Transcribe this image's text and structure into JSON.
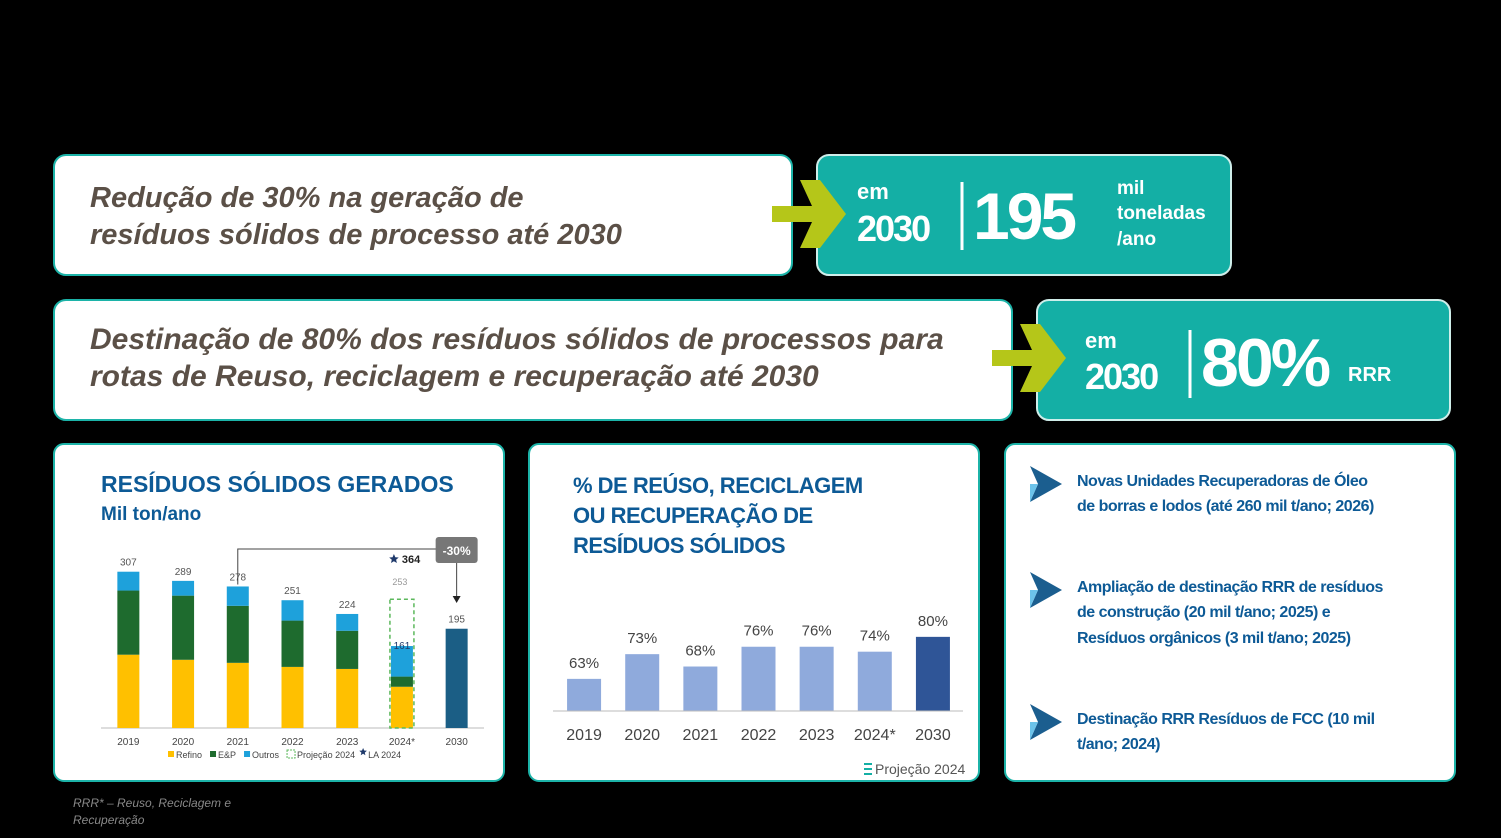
{
  "banners": [
    {
      "text_lines": [
        "Redução de 30% na geração de",
        "resíduos sólidos de processo até 2030"
      ],
      "prefix": [
        "em",
        "2030"
      ],
      "big": "195",
      "unit_lines": [
        "mil",
        "toneladas",
        "/ano"
      ]
    },
    {
      "text_lines": [
        "Destinação  de 80% dos resíduos sólidos de processos para",
        "rotas de Reuso, reciclagem e recuperação  até 2030"
      ],
      "prefix": [
        "em",
        "2030"
      ],
      "big": "80%",
      "unit_lines": [
        "RRR"
      ]
    }
  ],
  "chart_data": [
    {
      "type": "stacked_bar",
      "title": "RESÍDUOS SÓLIDOS GERADOS",
      "subtitle": "Mil ton/ano",
      "categories": [
        "2019",
        "2020",
        "2021",
        "2022",
        "2023",
        "2024*",
        "2030"
      ],
      "series": [
        {
          "name": "Refino",
          "color": "#ffc000",
          "values": [
            144,
            134,
            128,
            120,
            116,
            81,
            null
          ]
        },
        {
          "name": "E&P",
          "color": "#1e6b2e",
          "values": [
            126,
            126,
            112,
            91,
            75,
            20,
            null
          ]
        },
        {
          "name": "Outros",
          "color": "#1ea1db",
          "values": [
            37,
            29,
            38,
            40,
            33,
            60,
            null
          ]
        },
        {
          "color": "#1b5e85",
          "values": [
            null,
            null,
            null,
            null,
            null,
            null,
            195
          ]
        }
      ],
      "totals": [
        307,
        289,
        278,
        251,
        224,
        161,
        195
      ],
      "projection": {
        "label": "Projeção 2024",
        "value": 253
      },
      "la": {
        "label": "LA 2024",
        "value": 364
      },
      "annotation": "-30%",
      "ylim": [
        0,
        330
      ]
    },
    {
      "type": "bar",
      "title": [
        "% DE REÚSO, RECICLAGEM",
        "OU RECUPERAÇÃO DE",
        "RESÍDUOS SÓLIDOS"
      ],
      "categories": [
        "2019",
        "2020",
        "2021",
        "2022",
        "2023",
        "2024*",
        "2030"
      ],
      "values": [
        63,
        73,
        68,
        76,
        76,
        74,
        80
      ],
      "value_labels": [
        "63%",
        "73%",
        "68%",
        "76%",
        "76%",
        "74%",
        "80%"
      ],
      "colors": [
        "#8faadc",
        "#8faadc",
        "#8faadc",
        "#8faadc",
        "#8faadc",
        "#8faadc",
        "#2f5597"
      ],
      "legend": "Projeção 2024",
      "ylim": [
        50,
        85
      ]
    }
  ],
  "bullets": [
    [
      "Novas Unidades Recuperadoras de Óleo",
      "de borras e lodos (até 260 mil t/ano; 2026)"
    ],
    [
      "Ampliação de destinação RRR de resíduos",
      "de construção (20 mil t/ano; 2025) e",
      "Resíduos orgânicos (3 mil t/ano; 2025)"
    ],
    [
      "Destinação RRR Resíduos de FCC (10 mil",
      "t/ano; 2024)"
    ]
  ],
  "footnote": [
    "RRR* – Reuso, Reciclagem e",
    "Recuperação"
  ]
}
